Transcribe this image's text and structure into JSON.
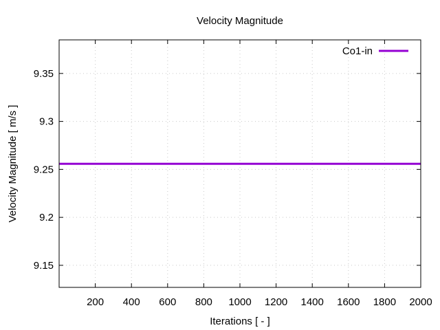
{
  "chart_data": {
    "type": "line",
    "title": "Velocity Magnitude",
    "xlabel": "Iterations [ - ]",
    "ylabel": "Velocity Magnitude [ m/s ]",
    "xlim": [
      0,
      2000
    ],
    "ylim": [
      9.127,
      9.385
    ],
    "xticks": [
      200,
      400,
      600,
      800,
      1000,
      1200,
      1400,
      1600,
      1800,
      2000
    ],
    "xtick_labels": [
      "200",
      "400",
      "600",
      "800",
      "1000",
      "1200",
      "1400",
      "1600",
      "1800",
      "2000"
    ],
    "yticks": [
      9.15,
      9.2,
      9.25,
      9.3,
      9.35
    ],
    "ytick_labels": [
      "9.15",
      "9.2",
      "9.25",
      "9.3",
      "9.35"
    ],
    "grid": true,
    "legend_position": "top-right",
    "series": [
      {
        "name": "Co1-in",
        "color": "#9400d3",
        "x": [
          0,
          2000
        ],
        "y": [
          9.2558,
          9.2558
        ]
      }
    ]
  }
}
